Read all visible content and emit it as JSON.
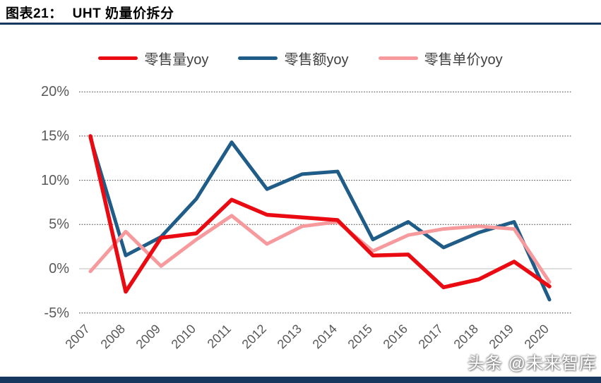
{
  "header": {
    "chart_label": "图表21：",
    "title": "UHT 奶量价拆分"
  },
  "chart_data": {
    "type": "line",
    "title": "UHT 奶量价拆分",
    "x": [
      2007,
      2008,
      2009,
      2010,
      2011,
      2012,
      2013,
      2014,
      2015,
      2016,
      2017,
      2018,
      2019,
      2020
    ],
    "series": [
      {
        "name": "零售量yoy",
        "color": "#ea0a12",
        "values": [
          15.0,
          -2.6,
          3.5,
          4.0,
          7.8,
          6.1,
          5.8,
          5.5,
          1.5,
          1.6,
          -2.1,
          -1.2,
          0.8,
          -2.0
        ]
      },
      {
        "name": "零售额yoy",
        "color": "#1f5c87",
        "values": [
          14.8,
          1.5,
          3.6,
          7.9,
          14.3,
          9.0,
          10.7,
          11.0,
          3.3,
          5.3,
          2.4,
          4.1,
          5.3,
          -3.5
        ]
      },
      {
        "name": "零售单价yoy",
        "color": "#f79a9d",
        "values": [
          -0.3,
          4.2,
          0.3,
          3.3,
          6.0,
          2.8,
          4.8,
          5.3,
          2.0,
          3.8,
          4.5,
          4.8,
          4.5,
          -1.5
        ]
      }
    ],
    "ylim": [
      -5,
      20
    ],
    "y_ticks": [
      "20%",
      "15%",
      "10%",
      "5%",
      "0%",
      "-5%"
    ],
    "y_grid": [
      20,
      15,
      10,
      5,
      0,
      -5
    ],
    "grid": "horizontal dashed, solid light 0% line",
    "legend_position": "top"
  },
  "colors": {
    "accent_navy": "#17375e",
    "grid_dash": "#404040",
    "zero_line": "#d9d9d9",
    "axis_text": "#595959"
  },
  "watermark": {
    "text": "头条 @未来智库"
  }
}
